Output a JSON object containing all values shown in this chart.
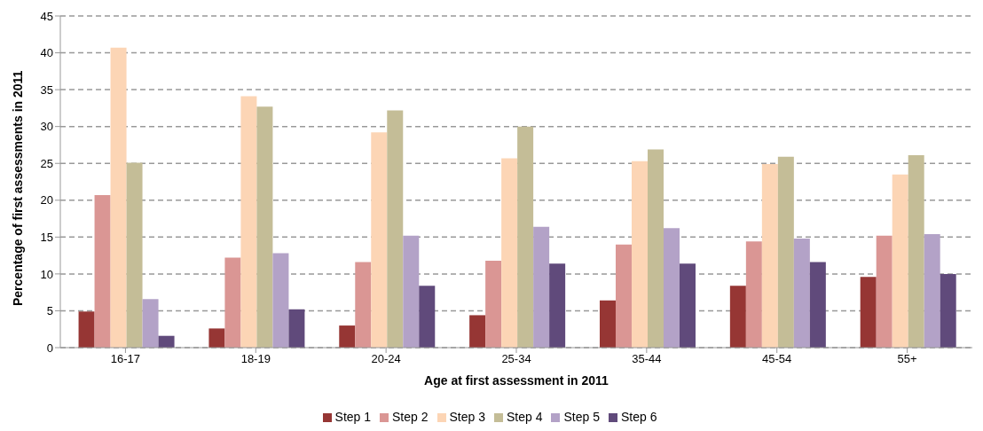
{
  "chart_data": {
    "type": "bar",
    "xlabel": "Age at first assessment in 2011",
    "ylabel": "Percentage of first assessments in 2011",
    "categories": [
      "16-17",
      "18-19",
      "20-24",
      "25-34",
      "35-44",
      "45-54",
      "55+"
    ],
    "series": [
      {
        "name": "Step 1",
        "color": "#963634",
        "values": [
          4.9,
          2.6,
          3.0,
          4.4,
          6.4,
          8.4,
          9.6
        ]
      },
      {
        "name": "Step 2",
        "color": "#da9694",
        "values": [
          20.7,
          12.2,
          11.6,
          11.8,
          14.0,
          14.4,
          15.2
        ]
      },
      {
        "name": "Step 3",
        "color": "#fcd5b5",
        "values": [
          40.7,
          34.1,
          29.2,
          25.7,
          25.3,
          24.9,
          23.5
        ]
      },
      {
        "name": "Step 4",
        "color": "#c4bd97",
        "values": [
          25.1,
          32.7,
          32.2,
          30.0,
          26.9,
          25.9,
          26.1
        ]
      },
      {
        "name": "Step 5",
        "color": "#b3a2c7",
        "values": [
          6.6,
          12.8,
          15.2,
          16.4,
          16.2,
          14.8,
          15.4
        ]
      },
      {
        "name": "Step 6",
        "color": "#604a7b",
        "values": [
          1.6,
          5.2,
          8.4,
          11.4,
          11.4,
          11.6,
          10.0
        ]
      }
    ],
    "ylim": [
      0,
      45
    ],
    "yticks": [
      0,
      5,
      10,
      15,
      20,
      25,
      30,
      35,
      40,
      45
    ],
    "grid": "y",
    "legend": "bottom"
  }
}
